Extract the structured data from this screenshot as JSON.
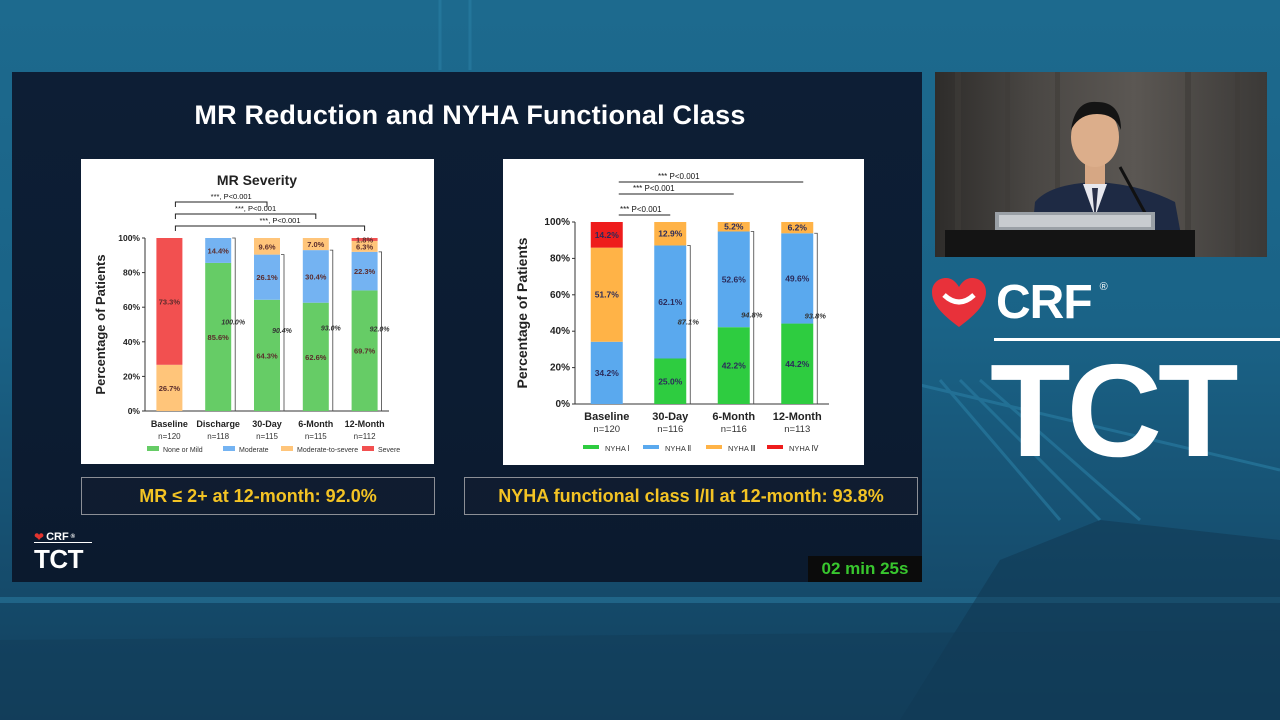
{
  "slide": {
    "title": "MR Reduction and NYHA Functional Class",
    "timer": "02 min 25s",
    "mini_logo_crf": "CRF",
    "mini_logo_reg": "®",
    "mini_logo_tct": "TCT"
  },
  "brand": {
    "crf": "CRF",
    "reg": "®",
    "tct": "TCT"
  },
  "callouts": {
    "left": "MR ≤ 2+ at 12-month: 92.0%",
    "right": "NYHA functional class I/II at 12-month: 93.8%"
  },
  "chart_data": [
    {
      "type": "bar",
      "stacked": true,
      "title": "MR Severity",
      "ylabel": "Percentage of Patients",
      "ylim": [
        0,
        100
      ],
      "yticks": [
        "0%",
        "20%",
        "40%",
        "60%",
        "80%",
        "100%"
      ],
      "categories": [
        "Baseline",
        "Discharge",
        "30-Day",
        "6-Month",
        "12-Month"
      ],
      "n_labels": [
        "n=120",
        "n=118",
        "n=115",
        "n=115",
        "n=112"
      ],
      "series": [
        {
          "name": "None or Mild",
          "color": "#66cc66",
          "values": [
            0,
            85.6,
            64.3,
            62.6,
            69.7
          ],
          "labels": [
            "",
            "85.6%",
            "64.3%",
            "62.6%",
            "69.7%"
          ]
        },
        {
          "name": "Moderate",
          "color": "#74b3f2",
          "values": [
            0,
            14.4,
            26.1,
            30.4,
            22.3
          ],
          "labels": [
            "",
            "14.4%",
            "26.1%",
            "30.4%",
            "22.3%"
          ]
        },
        {
          "name": "Moderate-to-severe",
          "color": "#ffc57a",
          "values": [
            26.7,
            0,
            9.6,
            7.0,
            6.3
          ],
          "labels": [
            "26.7%",
            "",
            "9.6%",
            "7.0%",
            "6.3%"
          ]
        },
        {
          "name": "Severe",
          "color": "#f25050",
          "values": [
            73.3,
            0,
            0,
            0,
            1.8
          ],
          "labels": [
            "73.3%",
            "",
            "",
            "",
            "1.8%"
          ]
        }
      ],
      "bracket_labels": [
        "100.0%",
        "90.4%",
        "93.0%",
        "92.0%"
      ],
      "significance": [
        {
          "label": "***,   P<0.001",
          "to": "30-Day"
        },
        {
          "label": "***,   P<0.001",
          "to": "6-Month"
        },
        {
          "label": "***,   P<0.001",
          "to": "12-Month"
        }
      ],
      "legend_position": "bottom"
    },
    {
      "type": "bar",
      "stacked": true,
      "title": "",
      "ylabel": "Percentage of Patients",
      "ylim": [
        0,
        100
      ],
      "yticks": [
        "0%",
        "20%",
        "40%",
        "60%",
        "80%",
        "100%"
      ],
      "categories": [
        "Baseline",
        "30-Day",
        "6-Month",
        "12-Month"
      ],
      "n_labels": [
        "n=120",
        "n=116",
        "n=116",
        "n=113"
      ],
      "series": [
        {
          "name": "NYHA Ⅰ",
          "color": "#2ecc40",
          "values": [
            0,
            25.0,
            42.2,
            44.2
          ],
          "labels": [
            "",
            "25.0%",
            "42.2%",
            "44.2%"
          ]
        },
        {
          "name": "NYHA Ⅱ",
          "color": "#5aa9ee",
          "values": [
            34.2,
            62.1,
            52.6,
            49.6
          ],
          "labels": [
            "34.2%",
            "62.1%",
            "52.6%",
            "49.6%"
          ]
        },
        {
          "name": "NYHA Ⅲ",
          "color": "#ffb347",
          "values": [
            51.7,
            12.9,
            5.2,
            6.2
          ],
          "labels": [
            "51.7%",
            "12.9%",
            "5.2%",
            "6.2%"
          ]
        },
        {
          "name": "NYHA Ⅳ",
          "color": "#ee1c1c",
          "values": [
            14.2,
            0,
            0,
            0
          ],
          "labels": [
            "14.2%",
            "",
            "",
            ""
          ]
        }
      ],
      "bracket_labels": [
        "87.1%",
        "94.8%",
        "93.8%"
      ],
      "significance": [
        {
          "label": "*** P<0.001",
          "to": "30-Day"
        },
        {
          "label": "*** P<0.001",
          "to": "6-Month"
        },
        {
          "label": "*** P<0.001",
          "to": "12-Month"
        }
      ],
      "legend_position": "bottom"
    }
  ]
}
